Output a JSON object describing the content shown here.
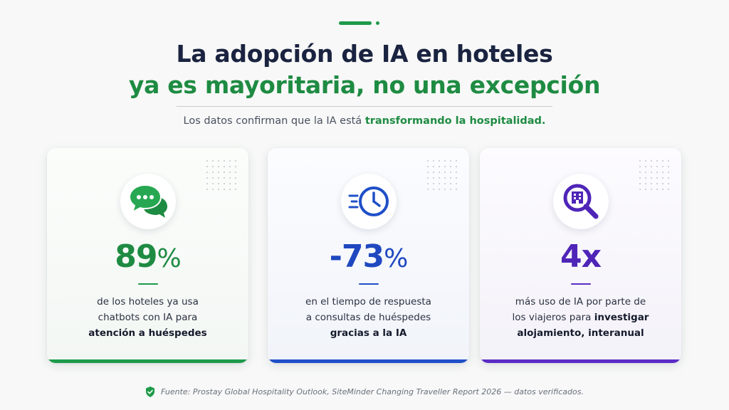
{
  "title": {
    "line1": "La adopción de  IA en hoteles",
    "line2": "ya es mayoritaria, no una excepción"
  },
  "subtitle": {
    "prefix": "Los datos confirman que la IA está ",
    "highlight": "transformando la hospitalidad."
  },
  "cards": [
    {
      "icon": "chat-bubbles-icon",
      "value": "89",
      "unit": "%",
      "text_line1": "de los hoteles ya usa",
      "text_line2": "chatbots con IA para",
      "bold_line": "atención a huéspedes",
      "accent": "#1e9a4a"
    },
    {
      "icon": "clock-icon",
      "value": "-73",
      "unit": "%",
      "text_line1": "en el tiempo de respuesta",
      "text_line2": "a consultas de huéspedes",
      "bold_line": "gracias a la IA",
      "accent": "#1f4fc8"
    },
    {
      "icon": "hotel-search-icon",
      "value": "4x",
      "unit": "",
      "text_line1": "más uso de IA por parte de",
      "text_line2_prefix": "los viajeros para ",
      "text_line2_bold": "investigar",
      "bold_line": "alojamiento, interanual",
      "accent": "#5b2bc4"
    }
  ],
  "footer": {
    "icon": "shield-check-icon",
    "text": "Fuente: Prostay Global Hospitality Outlook, SiteMinder Changing Traveller Report 2026 — datos verificados."
  }
}
